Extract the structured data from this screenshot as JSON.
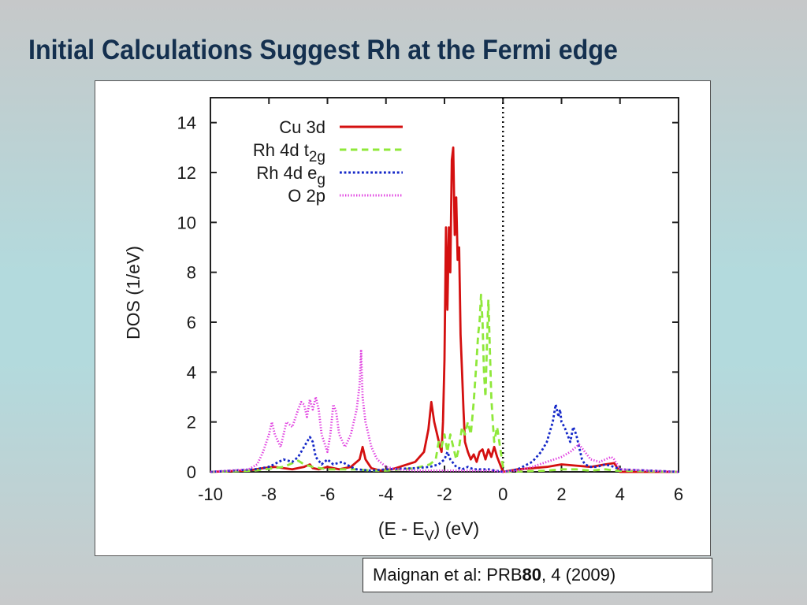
{
  "slide": {
    "title": "Initial Calculations Suggest Rh at the Fermi edge",
    "citation": {
      "prefix": "Maignan et al: PRB ",
      "volume": "80",
      "suffix": ", 4 (2009)"
    }
  },
  "chart_data": {
    "type": "line",
    "xlabel": {
      "text": "(E - E",
      "sub": "V",
      "after": ") (eV)"
    },
    "ylabel": "DOS (1/eV)",
    "xlim": [
      -10,
      6
    ],
    "ylim": [
      0,
      15
    ],
    "xticks": [
      -10,
      -8,
      -6,
      -4,
      -2,
      0,
      2,
      4,
      6
    ],
    "yticks": [
      0,
      2,
      4,
      6,
      8,
      10,
      12,
      14
    ],
    "fermi_line_x": 0,
    "legend_position": "top-left",
    "series": [
      {
        "name": "Cu 3d",
        "name_sub": "",
        "color": "#d41010",
        "dash": "solid",
        "x": [
          -10,
          -8.7,
          -8.2,
          -7.8,
          -7.2,
          -6.8,
          -6.6,
          -6.5,
          -6.3,
          -6.0,
          -5.6,
          -5.2,
          -4.9,
          -4.8,
          -4.7,
          -4.5,
          -4.2,
          -3.8,
          -3.4,
          -3.0,
          -2.7,
          -2.55,
          -2.45,
          -2.35,
          -2.25,
          -2.15,
          -2.1,
          -2.05,
          -2.0,
          -1.95,
          -1.9,
          -1.85,
          -1.8,
          -1.75,
          -1.7,
          -1.65,
          -1.6,
          -1.55,
          -1.5,
          -1.45,
          -1.4,
          -1.35,
          -1.3,
          -1.2,
          -1.1,
          -1.0,
          -0.9,
          -0.8,
          -0.7,
          -0.6,
          -0.5,
          -0.4,
          -0.3,
          -0.2,
          -0.1,
          0.0,
          0.5,
          1.0,
          1.5,
          2.0,
          2.5,
          3.0,
          3.5,
          3.8,
          4.0,
          6
        ],
        "y": [
          0,
          0.05,
          0.15,
          0.2,
          0.1,
          0.2,
          0.3,
          0.15,
          0.1,
          0.2,
          0.1,
          0.2,
          0.5,
          1.0,
          0.5,
          0.15,
          0.05,
          0.1,
          0.25,
          0.4,
          0.8,
          1.7,
          2.8,
          2.0,
          1.5,
          1.0,
          0.8,
          2.0,
          4.5,
          9.8,
          6.5,
          9.8,
          8.0,
          12.5,
          13.0,
          9.5,
          11.0,
          8.5,
          9.0,
          5.5,
          4.0,
          2.5,
          1.2,
          0.8,
          0.5,
          0.7,
          0.4,
          0.8,
          0.9,
          0.5,
          0.9,
          0.6,
          1.0,
          0.6,
          0.3,
          0,
          0.1,
          0.15,
          0.2,
          0.3,
          0.25,
          0.2,
          0.3,
          0.35,
          0,
          0
        ]
      },
      {
        "name": "Rh 4d t",
        "name_sub": "2g",
        "color": "#8fe83a",
        "dash": "6,4",
        "x": [
          -10,
          -8.5,
          -7.5,
          -7.0,
          -6.8,
          -6.5,
          -6.0,
          -5.0,
          -4.5,
          -4.0,
          -3.5,
          -3.0,
          -2.5,
          -2.3,
          -2.2,
          -2.1,
          -2.0,
          -1.9,
          -1.8,
          -1.7,
          -1.6,
          -1.5,
          -1.4,
          -1.3,
          -1.2,
          -1.1,
          -1.0,
          -0.9,
          -0.85,
          -0.8,
          -0.75,
          -0.7,
          -0.65,
          -0.6,
          -0.55,
          -0.5,
          -0.45,
          -0.4,
          -0.35,
          -0.3,
          -0.2,
          -0.1,
          0,
          0.1,
          1.5,
          2.0,
          2.5,
          3.0,
          3.5,
          3.8,
          6
        ],
        "y": [
          0,
          0.05,
          0.2,
          0.45,
          0.3,
          0.2,
          0.1,
          0.1,
          0.05,
          0.05,
          0.1,
          0.15,
          0.3,
          0.5,
          1.2,
          1.0,
          1.5,
          0.8,
          1.5,
          1.0,
          0.5,
          1.0,
          1.8,
          1.5,
          2.0,
          1.5,
          2.8,
          4.5,
          5.5,
          6.0,
          7.1,
          6.0,
          4.0,
          3.0,
          5.0,
          6.9,
          5.0,
          3.0,
          2.0,
          1.2,
          1.8,
          1.0,
          0.2,
          0,
          0.05,
          0.1,
          0.1,
          0.05,
          0.1,
          0.05,
          0
        ]
      },
      {
        "name": "Rh 4d e",
        "name_sub": "g",
        "color": "#1528c8",
        "dash": "2,2",
        "x": [
          -10,
          -8.5,
          -8.0,
          -7.5,
          -7.2,
          -7.0,
          -6.8,
          -6.6,
          -6.5,
          -6.4,
          -6.2,
          -6.0,
          -5.8,
          -5.5,
          -5.2,
          -5.0,
          -4.5,
          -4.0,
          -3.0,
          -2.5,
          -2.2,
          -2.0,
          -1.9,
          -1.8,
          -1.6,
          -1.4,
          -1.2,
          -1.0,
          -0.5,
          0,
          0.5,
          1.0,
          1.3,
          1.5,
          1.7,
          1.8,
          1.9,
          1.95,
          2.0,
          2.1,
          2.2,
          2.3,
          2.4,
          2.5,
          2.6,
          2.7,
          2.8,
          3.0,
          3.2,
          3.5,
          3.8,
          4.0,
          6
        ],
        "y": [
          0,
          0.1,
          0.2,
          0.5,
          0.4,
          0.6,
          1.0,
          1.4,
          1.2,
          0.6,
          0.3,
          0.5,
          0.3,
          0.4,
          0.2,
          0.1,
          0.05,
          0.1,
          0.15,
          0.2,
          0.3,
          0.5,
          0.8,
          0.5,
          0.2,
          0.1,
          0.2,
          0.1,
          0.1,
          0,
          0.1,
          0.4,
          0.8,
          1.2,
          2.0,
          2.7,
          2.2,
          2.5,
          2.0,
          1.8,
          1.5,
          1.2,
          1.8,
          1.5,
          1.0,
          0.5,
          0.3,
          0.2,
          0.2,
          0.3,
          0.2,
          0.1,
          0
        ]
      },
      {
        "name": "O 2p",
        "name_sub": "",
        "color": "#e040e0",
        "dash": "1,1.5",
        "x": [
          -10,
          -8.7,
          -8.4,
          -8.2,
          -8.0,
          -7.9,
          -7.8,
          -7.6,
          -7.4,
          -7.2,
          -7.0,
          -6.9,
          -6.8,
          -6.7,
          -6.6,
          -6.5,
          -6.4,
          -6.3,
          -6.2,
          -6.0,
          -5.9,
          -5.8,
          -5.7,
          -5.6,
          -5.4,
          -5.2,
          -5.0,
          -4.9,
          -4.85,
          -4.8,
          -4.75,
          -4.7,
          -4.6,
          -4.5,
          -4.3,
          -4.0,
          -3.6,
          -3.0,
          -2.5,
          -2.0,
          -1.6,
          -1.2,
          -0.8,
          -0.4,
          0,
          0.5,
          1.0,
          1.5,
          2.0,
          2.3,
          2.5,
          2.6,
          2.8,
          3.0,
          3.3,
          3.5,
          3.7,
          3.8,
          4.0,
          6
        ],
        "y": [
          0,
          0.1,
          0.3,
          0.8,
          1.5,
          2.0,
          1.5,
          1.0,
          2.0,
          1.8,
          2.5,
          2.8,
          2.7,
          2.2,
          2.9,
          2.5,
          3.0,
          2.5,
          1.5,
          0.8,
          1.5,
          2.7,
          2.4,
          1.5,
          1.0,
          1.5,
          2.5,
          3.5,
          4.9,
          3.0,
          2.5,
          2.0,
          1.5,
          1.0,
          0.5,
          0.2,
          0.1,
          0.05,
          0.05,
          0.05,
          0.05,
          0.05,
          0.05,
          0.05,
          0,
          0.05,
          0.2,
          0.4,
          0.6,
          0.8,
          1.0,
          1.1,
          0.8,
          0.5,
          0.4,
          0.5,
          0.6,
          0.5,
          0.1,
          0
        ]
      }
    ]
  }
}
